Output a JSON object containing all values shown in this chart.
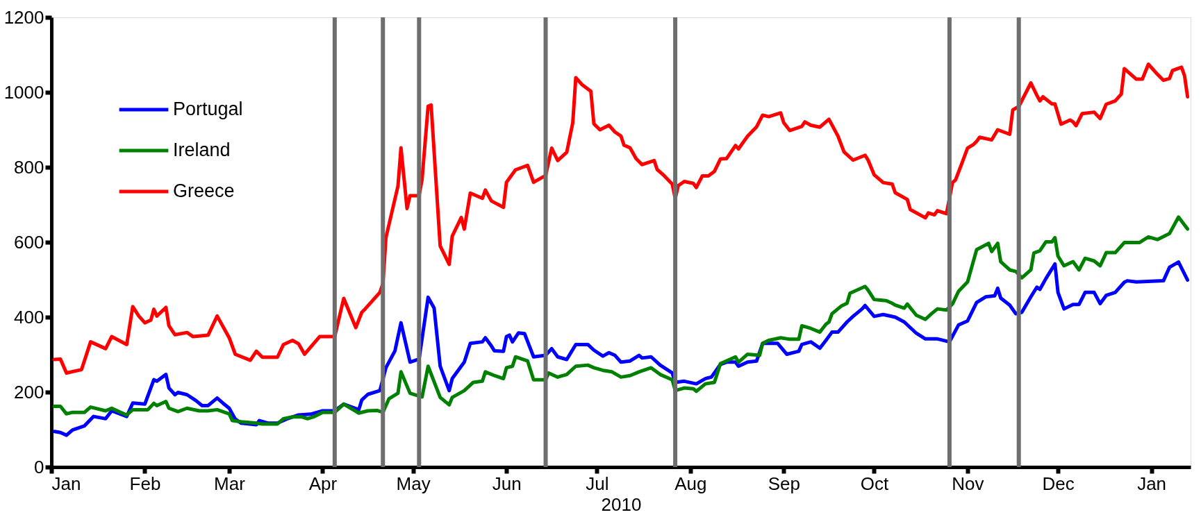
{
  "chart_data": {
    "type": "line",
    "xlabel": "2010",
    "xlim": [
      "2010-01-01",
      "2011-01-14"
    ],
    "xticks": [
      {
        "value": "2010-01-01",
        "label": "Jan"
      },
      {
        "value": "2010-02-01",
        "label": "Feb"
      },
      {
        "value": "2010-03-01",
        "label": "Mar"
      },
      {
        "value": "2010-04-01",
        "label": "Apr"
      },
      {
        "value": "2010-05-01",
        "label": "May"
      },
      {
        "value": "2010-06-01",
        "label": "Jun"
      },
      {
        "value": "2010-07-01",
        "label": "Jul"
      },
      {
        "value": "2010-08-01",
        "label": "Aug"
      },
      {
        "value": "2010-09-01",
        "label": "Sep"
      },
      {
        "value": "2010-10-01",
        "label": "Oct"
      },
      {
        "value": "2010-11-01",
        "label": "Nov"
      },
      {
        "value": "2010-12-01",
        "label": "Dec"
      },
      {
        "value": "2011-01-01",
        "label": "Jan"
      }
    ],
    "ylim": [
      0,
      1200
    ],
    "yticks": [
      0,
      200,
      400,
      600,
      800,
      1000,
      1200
    ],
    "grid": false,
    "legend": "top left",
    "series": [
      {
        "name": "Portugal",
        "color": "#0000ff",
        "x": [
          "2010-01-02",
          "2010-01-04",
          "2010-01-06",
          "2010-01-08",
          "2010-01-12",
          "2010-01-15",
          "2010-01-19",
          "2010-01-21",
          "2010-01-26",
          "2010-01-28",
          "2010-02-01",
          "2010-02-04",
          "2010-02-05",
          "2010-02-08",
          "2010-02-09",
          "2010-02-11",
          "2010-02-12",
          "2010-02-15",
          "2010-02-18",
          "2010-02-20",
          "2010-02-22",
          "2010-02-25",
          "2010-02-27",
          "2010-03-01",
          "2010-03-03",
          "2010-03-05",
          "2010-03-10",
          "2010-03-11",
          "2010-03-14",
          "2010-03-17",
          "2010-03-20",
          "2010-03-24",
          "2010-03-28",
          "2010-04-01",
          "2010-04-05",
          "2010-04-08",
          "2010-04-13",
          "2010-04-14",
          "2010-04-16",
          "2010-04-20",
          "2010-04-22",
          "2010-04-25",
          "2010-04-27",
          "2010-04-30",
          "2010-05-03",
          "2010-05-06",
          "2010-05-08",
          "2010-05-10",
          "2010-05-13",
          "2010-05-14",
          "2010-05-18",
          "2010-05-20",
          "2010-05-24",
          "2010-05-25",
          "2010-05-27",
          "2010-05-28",
          "2010-05-31",
          "2010-06-01",
          "2010-06-02",
          "2010-06-03",
          "2010-06-05",
          "2010-06-07",
          "2010-06-10",
          "2010-06-14",
          "2010-06-16",
          "2010-06-18",
          "2010-06-21",
          "2010-06-24",
          "2010-06-28",
          "2010-06-30",
          "2010-07-03",
          "2010-07-05",
          "2010-07-07",
          "2010-07-09",
          "2010-07-12",
          "2010-07-15",
          "2010-07-16",
          "2010-07-19",
          "2010-07-22",
          "2010-07-26",
          "2010-07-27",
          "2010-07-30",
          "2010-08-03",
          "2010-08-06",
          "2010-08-08",
          "2010-08-11",
          "2010-08-13",
          "2010-08-16",
          "2010-08-17",
          "2010-08-20",
          "2010-08-23",
          "2010-08-25",
          "2010-08-30",
          "2010-09-02",
          "2010-09-06",
          "2010-09-07",
          "2010-09-10",
          "2010-09-13",
          "2010-09-15",
          "2010-09-17",
          "2010-09-19",
          "2010-09-22",
          "2010-09-24",
          "2010-09-27",
          "2010-09-28",
          "2010-10-01",
          "2010-10-04",
          "2010-10-08",
          "2010-10-11",
          "2010-10-15",
          "2010-10-18",
          "2010-10-22",
          "2010-10-26",
          "2010-10-29",
          "2010-11-01",
          "2010-11-04",
          "2010-11-07",
          "2010-11-10",
          "2010-11-11",
          "2010-11-12",
          "2010-11-15",
          "2010-11-17",
          "2010-11-19",
          "2010-11-22",
          "2010-11-24",
          "2010-11-25",
          "2010-11-27",
          "2010-11-30",
          "2010-12-01",
          "2010-12-03",
          "2010-12-06",
          "2010-12-08",
          "2010-12-10",
          "2010-12-13",
          "2010-12-15",
          "2010-12-17",
          "2010-12-20",
          "2010-12-23",
          "2010-12-24",
          "2010-12-27",
          "2011-01-05",
          "2011-01-07",
          "2011-01-10",
          "2011-01-13"
        ],
        "values": [
          95,
          92,
          85,
          99,
          110,
          135,
          129,
          150,
          135,
          171,
          168,
          233,
          229,
          247,
          211,
          193,
          199,
          193,
          177,
          164,
          164,
          184,
          170,
          157,
          128,
          117,
          113,
          124,
          117,
          117,
          128,
          139,
          141,
          150,
          150,
          168,
          153,
          179,
          194,
          204,
          265,
          310,
          385,
          280,
          288,
          453,
          424,
          269,
          204,
          236,
          280,
          330,
          334,
          345,
          323,
          310,
          309,
          348,
          352,
          334,
          358,
          356,
          294,
          298,
          316,
          294,
          287,
          327,
          327,
          312,
          296,
          305,
          298,
          280,
          283,
          298,
          291,
          294,
          272,
          251,
          226,
          229,
          222,
          236,
          240,
          274,
          280,
          280,
          269,
          280,
          283,
          330,
          330,
          301,
          309,
          327,
          334,
          317,
          338,
          360,
          360,
          387,
          402,
          422,
          431,
          402,
          407,
          400,
          387,
          357,
          342,
          342,
          334,
          379,
          390,
          439,
          454,
          457,
          477,
          451,
          432,
          409,
          413,
          454,
          480,
          474,
          503,
          542,
          466,
          422,
          434,
          434,
          466,
          466,
          436,
          458,
          466,
          493,
          497,
          494,
          497,
          533,
          547,
          499
        ]
      },
      {
        "name": "Ireland",
        "color": "#008000",
        "x": [
          "2010-01-02",
          "2010-01-04",
          "2010-01-06",
          "2010-01-08",
          "2010-01-12",
          "2010-01-14",
          "2010-01-19",
          "2010-01-21",
          "2010-01-24",
          "2010-01-26",
          "2010-01-28",
          "2010-02-02",
          "2010-02-04",
          "2010-02-05",
          "2010-02-08",
          "2010-02-09",
          "2010-02-12",
          "2010-02-15",
          "2010-02-19",
          "2010-02-22",
          "2010-02-25",
          "2010-03-01",
          "2010-03-02",
          "2010-03-05",
          "2010-03-10",
          "2010-03-12",
          "2010-03-17",
          "2010-03-19",
          "2010-03-22",
          "2010-03-25",
          "2010-03-27",
          "2010-03-29",
          "2010-04-01",
          "2010-04-05",
          "2010-04-08",
          "2010-04-13",
          "2010-04-16",
          "2010-04-19",
          "2010-04-21",
          "2010-04-23",
          "2010-04-26",
          "2010-04-27",
          "2010-04-30",
          "2010-05-04",
          "2010-05-06",
          "2010-05-10",
          "2010-05-13",
          "2010-05-14",
          "2010-05-18",
          "2010-05-21",
          "2010-05-24",
          "2010-05-25",
          "2010-05-28",
          "2010-05-31",
          "2010-06-01",
          "2010-06-03",
          "2010-06-04",
          "2010-06-08",
          "2010-06-10",
          "2010-06-14",
          "2010-06-15",
          "2010-06-18",
          "2010-06-21",
          "2010-06-24",
          "2010-06-28",
          "2010-06-30",
          "2010-07-03",
          "2010-07-06",
          "2010-07-09",
          "2010-07-12",
          "2010-07-15",
          "2010-07-19",
          "2010-07-22",
          "2010-07-26",
          "2010-07-27",
          "2010-07-30",
          "2010-08-02",
          "2010-08-03",
          "2010-08-06",
          "2010-08-09",
          "2010-08-11",
          "2010-08-16",
          "2010-08-17",
          "2010-08-20",
          "2010-08-24",
          "2010-08-25",
          "2010-08-27",
          "2010-08-31",
          "2010-09-03",
          "2010-09-06",
          "2010-09-07",
          "2010-09-10",
          "2010-09-13",
          "2010-09-15",
          "2010-09-16",
          "2010-09-17",
          "2010-09-20",
          "2010-09-22",
          "2010-09-23",
          "2010-09-28",
          "2010-09-29",
          "2010-10-01",
          "2010-10-05",
          "2010-10-07",
          "2010-10-08",
          "2010-10-11",
          "2010-10-12",
          "2010-10-15",
          "2010-10-18",
          "2010-10-20",
          "2010-10-22",
          "2010-10-25",
          "2010-10-27",
          "2010-10-29",
          "2010-11-01",
          "2010-11-04",
          "2010-11-08",
          "2010-11-09",
          "2010-11-11",
          "2010-11-12",
          "2010-11-15",
          "2010-11-17",
          "2010-11-19",
          "2010-11-22",
          "2010-11-23",
          "2010-11-25",
          "2010-11-27",
          "2010-11-29",
          "2010-11-30",
          "2010-12-01",
          "2010-12-03",
          "2010-12-06",
          "2010-12-08",
          "2010-12-10",
          "2010-12-13",
          "2010-12-15",
          "2010-12-17",
          "2010-12-20",
          "2010-12-23",
          "2010-12-28",
          "2010-12-31",
          "2011-01-03",
          "2011-01-07",
          "2011-01-10",
          "2011-01-13"
        ],
        "values": [
          162,
          162,
          142,
          146,
          146,
          160,
          150,
          157,
          146,
          139,
          153,
          153,
          170,
          164,
          175,
          157,
          148,
          157,
          150,
          150,
          153,
          142,
          124,
          121,
          117,
          115,
          115,
          129,
          134,
          134,
          129,
          134,
          146,
          146,
          168,
          144,
          150,
          151,
          146,
          182,
          197,
          254,
          197,
          187,
          269,
          186,
          166,
          186,
          204,
          226,
          229,
          254,
          244,
          236,
          265,
          269,
          294,
          283,
          233,
          233,
          251,
          240,
          247,
          269,
          272,
          265,
          258,
          254,
          240,
          244,
          254,
          265,
          247,
          233,
          204,
          211,
          209,
          202,
          222,
          226,
          276,
          294,
          280,
          301,
          298,
          330,
          338,
          345,
          341,
          341,
          377,
          370,
          360,
          381,
          387,
          409,
          429,
          437,
          464,
          482,
          472,
          447,
          444,
          437,
          432,
          424,
          435,
          405,
          394,
          409,
          422,
          419,
          435,
          469,
          494,
          580,
          597,
          575,
          597,
          548,
          526,
          522,
          505,
          526,
          571,
          577,
          601,
          601,
          612,
          563,
          537,
          548,
          526,
          557,
          550,
          537,
          572,
          572,
          599,
          599,
          614,
          607,
          623,
          667,
          635
        ]
      },
      {
        "name": "Greece",
        "color": "#ff0000",
        "x": [
          "2010-01-02",
          "2010-01-04",
          "2010-01-06",
          "2010-01-11",
          "2010-01-14",
          "2010-01-19",
          "2010-01-21",
          "2010-01-26",
          "2010-01-28",
          "2010-01-30",
          "2010-02-01",
          "2010-02-03",
          "2010-02-04",
          "2010-02-05",
          "2010-02-08",
          "2010-02-09",
          "2010-02-11",
          "2010-02-15",
          "2010-02-17",
          "2010-02-22",
          "2010-02-25",
          "2010-03-01",
          "2010-03-03",
          "2010-03-08",
          "2010-03-10",
          "2010-03-12",
          "2010-03-17",
          "2010-03-19",
          "2010-03-22",
          "2010-03-24",
          "2010-03-26",
          "2010-03-31",
          "2010-04-05",
          "2010-04-08",
          "2010-04-12",
          "2010-04-14",
          "2010-04-15",
          "2010-04-20",
          "2010-04-21",
          "2010-04-22",
          "2010-04-26",
          "2010-04-27",
          "2010-04-29",
          "2010-04-30",
          "2010-05-03",
          "2010-05-04",
          "2010-05-06",
          "2010-05-07",
          "2010-05-10",
          "2010-05-13",
          "2010-05-14",
          "2010-05-17",
          "2010-05-18",
          "2010-05-20",
          "2010-05-24",
          "2010-05-25",
          "2010-05-27",
          "2010-05-31",
          "2010-06-01",
          "2010-06-02",
          "2010-06-04",
          "2010-06-08",
          "2010-06-10",
          "2010-06-14",
          "2010-06-16",
          "2010-06-18",
          "2010-06-21",
          "2010-06-23",
          "2010-06-24",
          "2010-06-26",
          "2010-06-29",
          "2010-06-30",
          "2010-07-02",
          "2010-07-05",
          "2010-07-07",
          "2010-07-09",
          "2010-07-10",
          "2010-07-12",
          "2010-07-14",
          "2010-07-16",
          "2010-07-20",
          "2010-07-21",
          "2010-07-23",
          "2010-07-26",
          "2010-07-27",
          "2010-07-28",
          "2010-07-30",
          "2010-08-02",
          "2010-08-03",
          "2010-08-05",
          "2010-08-07",
          "2010-08-09",
          "2010-08-11",
          "2010-08-13",
          "2010-08-16",
          "2010-08-17",
          "2010-08-20",
          "2010-08-23",
          "2010-08-25",
          "2010-08-27",
          "2010-08-31",
          "2010-09-01",
          "2010-09-03",
          "2010-09-07",
          "2010-09-08",
          "2010-09-10",
          "2010-09-13",
          "2010-09-16",
          "2010-09-19",
          "2010-09-21",
          "2010-09-24",
          "2010-09-28",
          "2010-09-29",
          "2010-10-01",
          "2010-10-04",
          "2010-10-07",
          "2010-10-08",
          "2010-10-12",
          "2010-10-13",
          "2010-10-18",
          "2010-10-19",
          "2010-10-21",
          "2010-10-22",
          "2010-10-25",
          "2010-10-27",
          "2010-10-28",
          "2010-10-30",
          "2010-11-01",
          "2010-11-03",
          "2010-11-04",
          "2010-11-05",
          "2010-11-09",
          "2010-11-11",
          "2010-11-15",
          "2010-11-16",
          "2010-11-18",
          "2010-11-22",
          "2010-11-24",
          "2010-11-25",
          "2010-11-26",
          "2010-11-29",
          "2010-11-30",
          "2010-12-02",
          "2010-12-05",
          "2010-12-06",
          "2010-12-07",
          "2010-12-09",
          "2010-12-13",
          "2010-12-15",
          "2010-12-17",
          "2010-12-20",
          "2010-12-22",
          "2010-12-23",
          "2010-12-27",
          "2010-12-29",
          "2010-12-31",
          "2011-01-03",
          "2011-01-05",
          "2011-01-07",
          "2011-01-08",
          "2011-01-11",
          "2011-01-12",
          "2011-01-13"
        ],
        "values": [
          287,
          288,
          251,
          260,
          334,
          316,
          348,
          327,
          428,
          403,
          385,
          392,
          421,
          403,
          426,
          377,
          353,
          359,
          348,
          352,
          403,
          345,
          301,
          285,
          309,
          293,
          293,
          327,
          338,
          329,
          301,
          348,
          348,
          450,
          372,
          413,
          421,
          466,
          489,
          612,
          750,
          852,
          690,
          724,
          724,
          768,
          963,
          966,
          590,
          541,
          616,
          666,
          635,
          731,
          717,
          739,
          710,
          693,
          760,
          771,
          793,
          805,
          760,
          778,
          851,
          818,
          840,
          919,
          1039,
          1021,
          1003,
          916,
          900,
          912,
          894,
          883,
          859,
          852,
          823,
          807,
          818,
          794,
          780,
          755,
          717,
          751,
          762,
          757,
          746,
          777,
          777,
          789,
          822,
          823,
          858,
          849,
          883,
          908,
          939,
          935,
          945,
          919,
          898,
          909,
          921,
          912,
          907,
          928,
          883,
          841,
          819,
          832,
          819,
          780,
          759,
          755,
          732,
          714,
          687,
          665,
          678,
          673,
          684,
          676,
          759,
          766,
          808,
          851,
          861,
          869,
          880,
          873,
          900,
          888,
          953,
          962,
          1025,
          992,
          977,
          988,
          969,
          969,
          915,
          926,
          921,
          911,
          943,
          947,
          930,
          968,
          977,
          995,
          1063,
          1035,
          1035,
          1075,
          1048,
          1032,
          1037,
          1058,
          1067,
          1044,
          988
        ]
      }
    ],
    "ref_lines": [
      {
        "axis": "x",
        "value": "2010-04-05",
        "color": "#6e6e6e"
      },
      {
        "axis": "x",
        "value": "2010-04-21",
        "color": "#6e6e6e"
      },
      {
        "axis": "x",
        "value": "2010-05-03",
        "color": "#6e6e6e"
      },
      {
        "axis": "x",
        "value": "2010-06-14",
        "color": "#6e6e6e"
      },
      {
        "axis": "x",
        "value": "2010-07-27",
        "color": "#6e6e6e"
      },
      {
        "axis": "x",
        "value": "2010-10-26",
        "color": "#6e6e6e"
      },
      {
        "axis": "x",
        "value": "2010-11-18",
        "color": "#6e6e6e"
      }
    ]
  }
}
